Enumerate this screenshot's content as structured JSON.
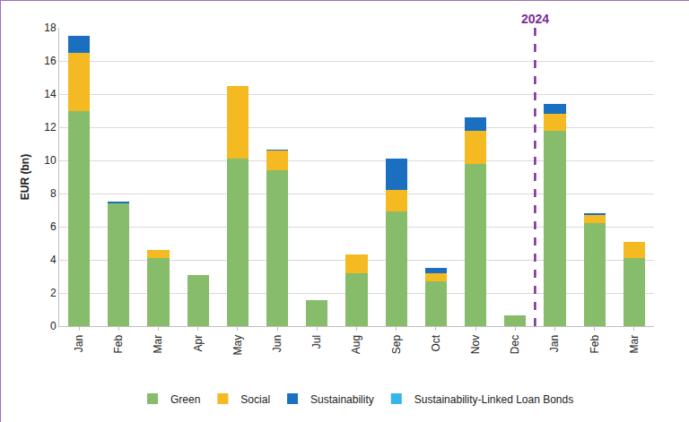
{
  "chart_data": {
    "type": "bar",
    "stacked": true,
    "y_label": "EUR (bn)",
    "categories": [
      "Jan",
      "Feb",
      "Mar",
      "Apr",
      "May",
      "Jun",
      "Jul",
      "Aug",
      "Sep",
      "Oct",
      "Nov",
      "Dec",
      "Jan",
      "Feb",
      "Mar"
    ],
    "series": [
      {
        "name": "Green",
        "color": "#86bc6a",
        "values": [
          13.0,
          7.4,
          4.1,
          3.1,
          10.1,
          9.4,
          1.55,
          3.2,
          6.9,
          2.7,
          9.8,
          0.65,
          11.8,
          6.2,
          4.1
        ]
      },
      {
        "name": "Social",
        "color": "#f5b922",
        "values": [
          3.5,
          0,
          0.5,
          0,
          4.4,
          1.2,
          0,
          1.1,
          1.3,
          0.5,
          2.0,
          0,
          1.0,
          0.5,
          1.0
        ]
      },
      {
        "name": "Sustainability",
        "color": "#1a6fc0",
        "values": [
          1.0,
          0.1,
          0,
          0,
          0,
          0.05,
          0,
          0,
          1.9,
          0.3,
          0.8,
          0,
          0.6,
          0.1,
          0
        ]
      },
      {
        "name": "Sustainability-Linked Loan Bonds",
        "color": "#35b5e8",
        "values": [
          0,
          0,
          0,
          0,
          0,
          0,
          0,
          0,
          0,
          0,
          0,
          0,
          0,
          0,
          0
        ]
      }
    ],
    "annotations": [
      {
        "text": "2024",
        "at": 12,
        "color": "#7b2d9b",
        "line_style": "dashed"
      }
    ],
    "ylim": [
      0,
      18
    ],
    "yticks": [
      0,
      2,
      4,
      6,
      8,
      10,
      12,
      14,
      16,
      18
    ],
    "grid": true,
    "legend": "bottom"
  }
}
